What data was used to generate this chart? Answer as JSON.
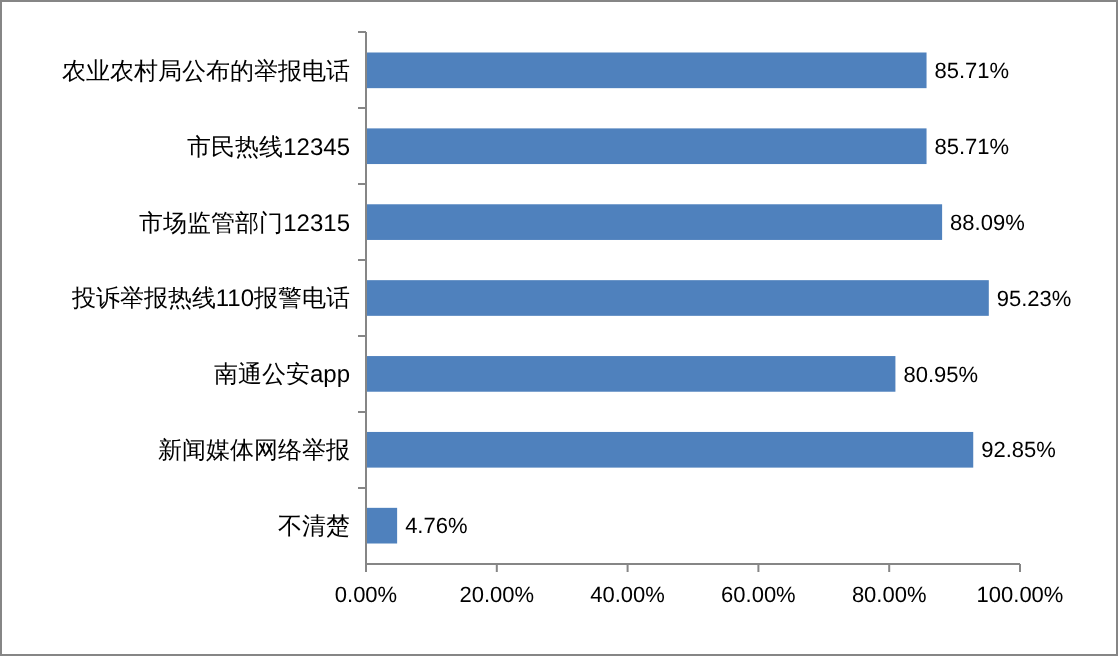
{
  "chart_data": {
    "type": "bar",
    "orientation": "horizontal",
    "categories": [
      "农业农村局公布的举报电话",
      "市民热线12345",
      "市场监管部门12315",
      "投诉举报热线110报警电话",
      "南通公安app",
      "新闻媒体网络举报",
      "不清楚"
    ],
    "values": [
      85.71,
      85.71,
      88.09,
      95.23,
      80.95,
      92.85,
      4.76
    ],
    "value_labels": [
      "85.71%",
      "85.71%",
      "88.09%",
      "95.23%",
      "80.95%",
      "92.85%",
      "4.76%"
    ],
    "color": "#4f81bd",
    "xlim": [
      0,
      100
    ],
    "xticks": [
      {
        "value": 0,
        "label": "0.00%"
      },
      {
        "value": 20,
        "label": "20.00%"
      },
      {
        "value": 40,
        "label": "40.00%"
      },
      {
        "value": 60,
        "label": "60.00%"
      },
      {
        "value": 80,
        "label": "80.00%"
      },
      {
        "value": 100,
        "label": "100.00%"
      }
    ],
    "grid": false
  }
}
